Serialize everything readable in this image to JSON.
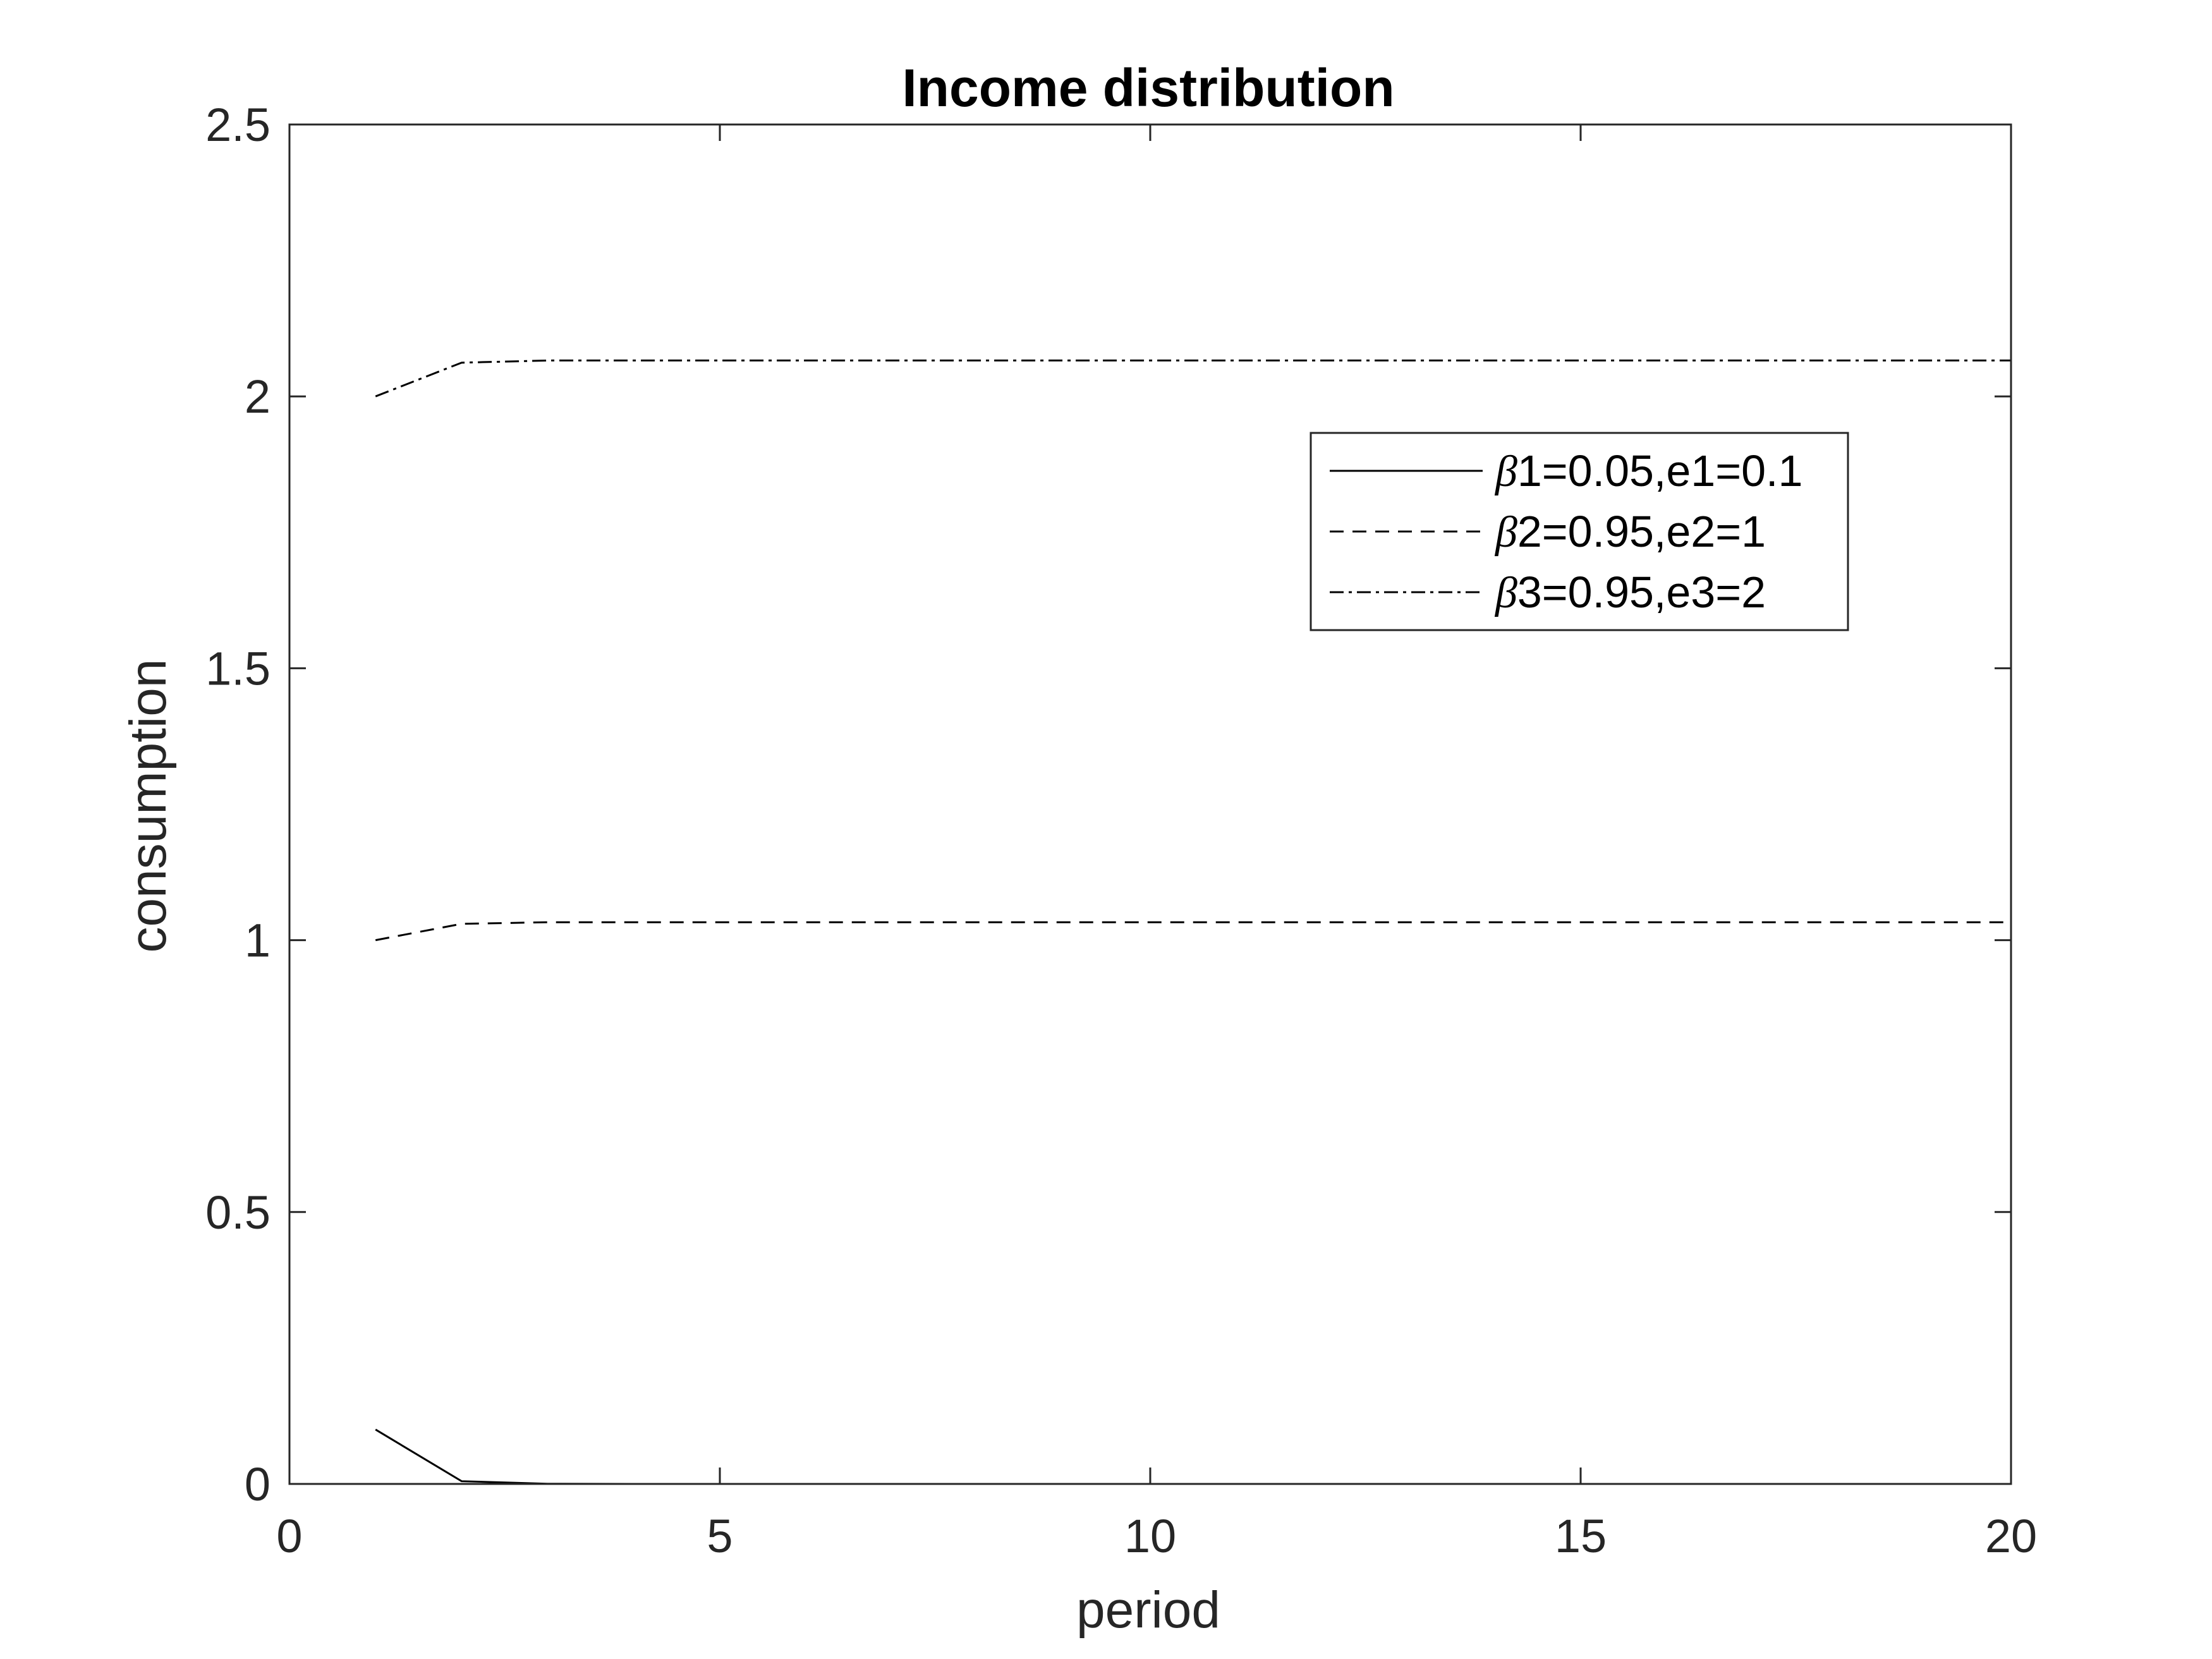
{
  "chart_data": {
    "type": "line",
    "title": "Income distribution",
    "xlabel": "period",
    "ylabel": "consumption",
    "xlim": [
      0,
      20
    ],
    "ylim": [
      0,
      2.5
    ],
    "xticks": [
      0,
      5,
      10,
      15,
      20
    ],
    "xtick_labels": [
      "0",
      "5",
      "10",
      "15",
      "20"
    ],
    "yticks": [
      0,
      0.5,
      1,
      1.5,
      2,
      2.5
    ],
    "ytick_labels": [
      "0",
      "0.5",
      "1",
      "1.5",
      "2",
      "2.5"
    ],
    "grid": false,
    "legend_position": "top-right",
    "x": [
      1,
      2,
      3,
      4,
      5,
      6,
      7,
      8,
      9,
      10,
      11,
      12,
      13,
      14,
      15,
      16,
      17,
      18,
      19,
      20
    ],
    "series": [
      {
        "name": "1=0.05,e1=0.1",
        "legend_symbol": "β",
        "line_style": "solid",
        "color": "#000000",
        "values": [
          0.1,
          0.005,
          0.0003,
          0,
          0,
          0,
          0,
          0,
          0,
          0,
          0,
          0,
          0,
          0,
          0,
          0,
          0,
          0,
          0,
          0
        ]
      },
      {
        "name": "2=0.95,e2=1",
        "legend_symbol": "β",
        "line_style": "dashed",
        "color": "#000000",
        "values": [
          1.0,
          1.03,
          1.033,
          1.033,
          1.033,
          1.033,
          1.033,
          1.033,
          1.033,
          1.033,
          1.033,
          1.033,
          1.033,
          1.033,
          1.033,
          1.033,
          1.033,
          1.033,
          1.033,
          1.033
        ]
      },
      {
        "name": "3=0.95,e3=2",
        "legend_symbol": "β",
        "line_style": "dashdot",
        "color": "#000000",
        "values": [
          2.0,
          2.062,
          2.066,
          2.066,
          2.066,
          2.066,
          2.066,
          2.066,
          2.066,
          2.066,
          2.066,
          2.066,
          2.066,
          2.066,
          2.066,
          2.066,
          2.066,
          2.066,
          2.066,
          2.066
        ]
      }
    ]
  }
}
